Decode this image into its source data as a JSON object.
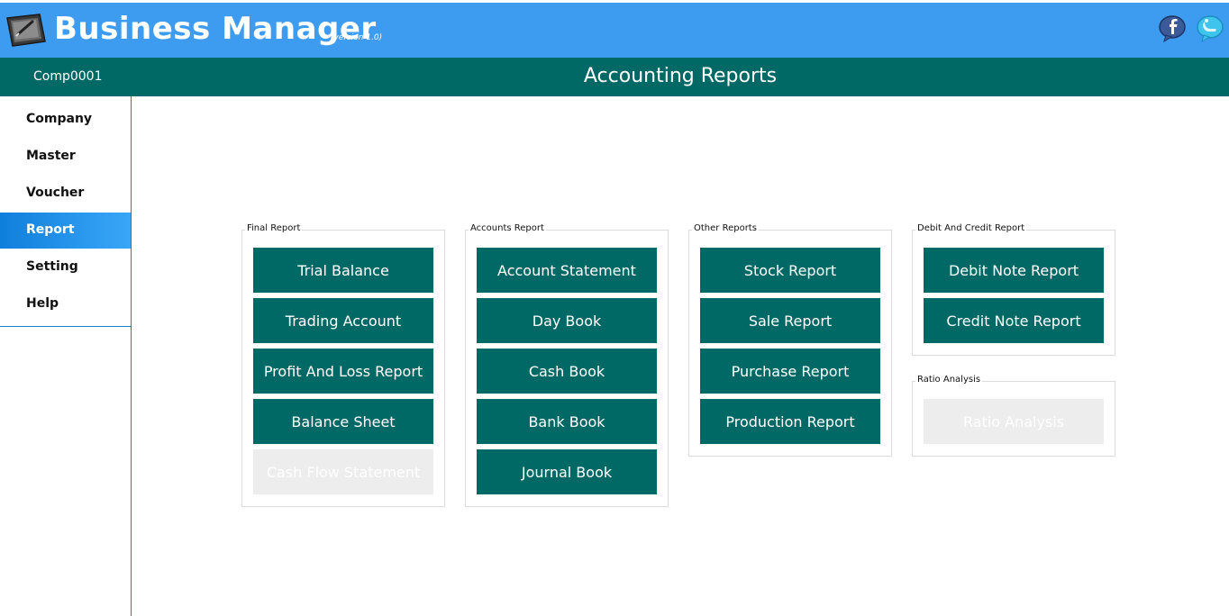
{
  "app": {
    "title": "Business Manager",
    "version": "(version 1.0)",
    "brand_color": "#3d9bf0",
    "accent_color": "#006865"
  },
  "icons": {
    "app": "tablet-pen-icon",
    "facebook": "facebook-icon",
    "twitter": "twitter-icon"
  },
  "titlebar": {
    "company_code": "Comp0001",
    "page_title": "Accounting Reports"
  },
  "sidebar": {
    "items": [
      {
        "label": "Company",
        "active": false
      },
      {
        "label": "Master",
        "active": false
      },
      {
        "label": "Voucher",
        "active": false
      },
      {
        "label": "Report",
        "active": true
      },
      {
        "label": "Setting",
        "active": false
      },
      {
        "label": "Help",
        "active": false
      }
    ]
  },
  "groups": {
    "final": {
      "legend": "Final Report",
      "buttons": [
        {
          "label": "Trial Balance",
          "enabled": true
        },
        {
          "label": "Trading Account",
          "enabled": true
        },
        {
          "label": "Profit And Loss Report",
          "enabled": true
        },
        {
          "label": "Balance Sheet",
          "enabled": true
        },
        {
          "label": "Cash Flow Statement",
          "enabled": false
        }
      ]
    },
    "accounts": {
      "legend": "Accounts Report",
      "buttons": [
        {
          "label": "Account Statement",
          "enabled": true
        },
        {
          "label": "Day Book",
          "enabled": true
        },
        {
          "label": "Cash Book",
          "enabled": true
        },
        {
          "label": "Bank Book",
          "enabled": true
        },
        {
          "label": "Journal Book",
          "enabled": true
        }
      ]
    },
    "other": {
      "legend": "Other Reports",
      "buttons": [
        {
          "label": "Stock Report",
          "enabled": true
        },
        {
          "label": "Sale Report",
          "enabled": true
        },
        {
          "label": "Purchase Report",
          "enabled": true
        },
        {
          "label": "Production Report",
          "enabled": true
        }
      ]
    },
    "debit_credit": {
      "legend": "Debit And Credit Report",
      "buttons": [
        {
          "label": "Debit Note Report",
          "enabled": true
        },
        {
          "label": "Credit Note Report",
          "enabled": true
        }
      ]
    },
    "ratio": {
      "legend": "Ratio Analysis",
      "buttons": [
        {
          "label": "Ratio Analysis",
          "enabled": false
        }
      ]
    }
  }
}
